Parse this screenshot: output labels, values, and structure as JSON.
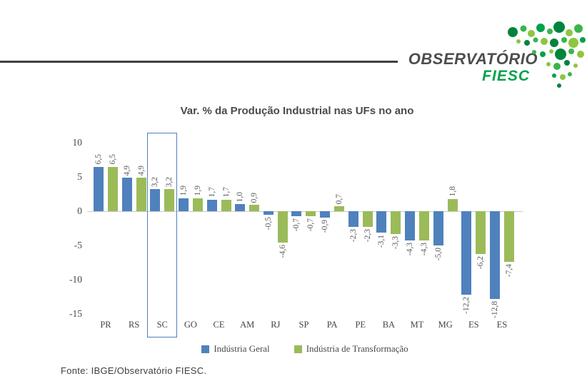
{
  "header": {
    "logo_line1": "OBSERVATÓRIO",
    "logo_line2": "FIESC",
    "logo_text_color": "#4d4d4d",
    "logo_accent_color": "#00A14B"
  },
  "chart_data": {
    "type": "bar",
    "title": "Var. % da Produção Industrial nas UFs no ano",
    "categories": [
      "PR",
      "RS",
      "SC",
      "GO",
      "CE",
      "AM",
      "RJ",
      "SP",
      "PA",
      "PE",
      "BA",
      "MT",
      "MG",
      "ES",
      "ES"
    ],
    "series": [
      {
        "name": "Indústria Geral",
        "color": "#4F81BD",
        "values": [
          6.5,
          4.9,
          3.2,
          1.9,
          1.7,
          1.0,
          -0.5,
          -0.7,
          -0.9,
          -2.3,
          -3.1,
          -4.3,
          -5.0,
          -12.2,
          -12.8
        ]
      },
      {
        "name": "Indústria de Transformação",
        "color": "#9BBB59",
        "values": [
          6.5,
          4.9,
          3.2,
          1.9,
          1.7,
          0.9,
          -4.6,
          -0.7,
          0.7,
          -2.3,
          -3.3,
          -4.3,
          1.8,
          -6.2,
          -7.4
        ]
      }
    ],
    "y_ticks": [
      10,
      5,
      0,
      -5,
      -10,
      -15
    ],
    "ylim": [
      -15,
      10
    ],
    "grid": false,
    "legend_position": "bottom",
    "highlighted_category": "SC",
    "highlight_index": 2,
    "decimal_separator": ","
  },
  "footer": {
    "source": "Fonte: IBGE/Observatório FIESC."
  }
}
